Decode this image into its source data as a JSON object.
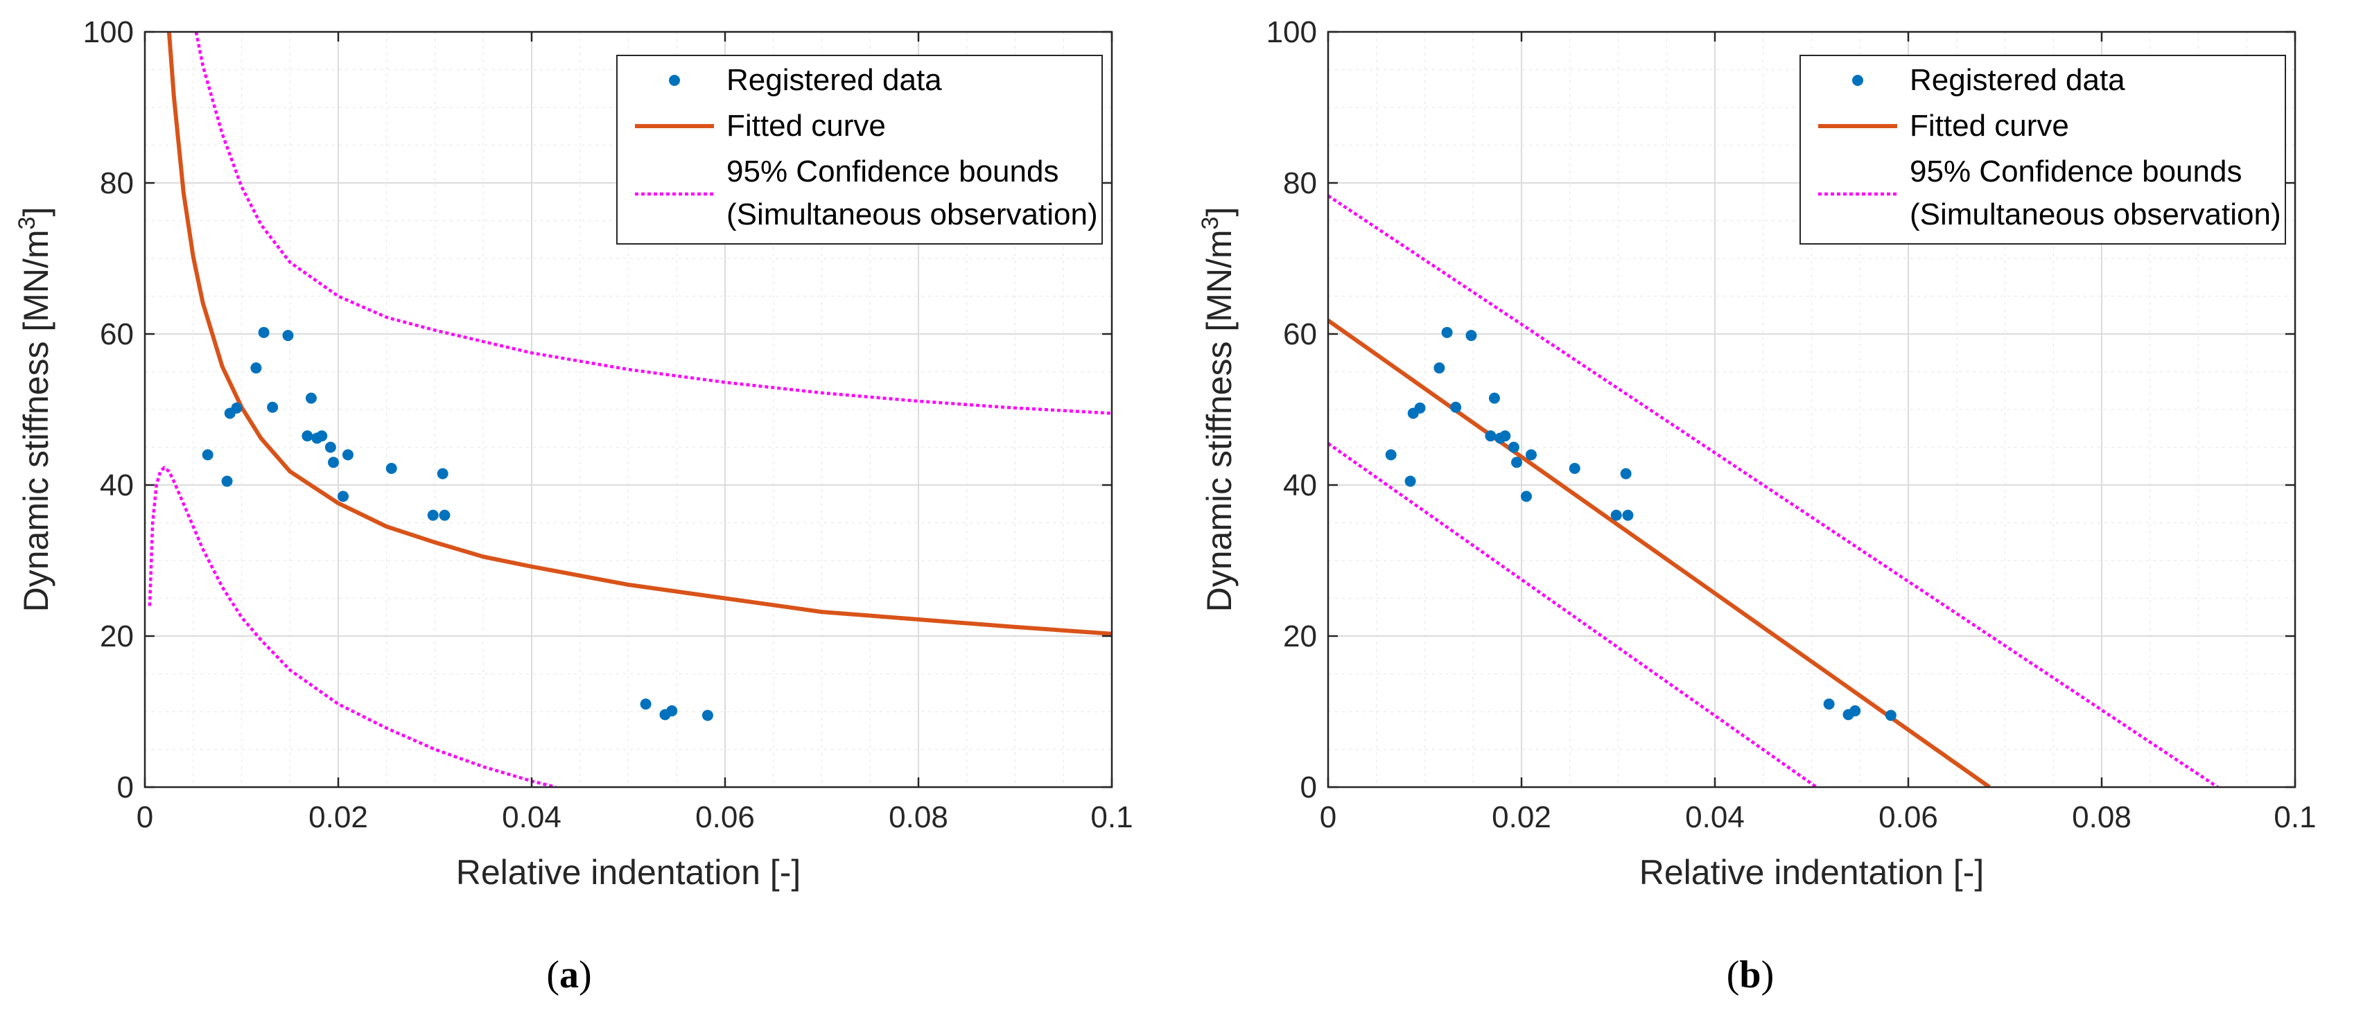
{
  "colors": {
    "data": "#0072BD",
    "fit": "#D95319",
    "bounds": "#FF00FF",
    "grid": "#e5e5e5",
    "axis": "#262626"
  },
  "chart_data": [
    {
      "panel": "(a)",
      "type": "scatter",
      "xlabel": "Relative indentation [-]",
      "ylabel": "Dynamic stiffness [MN/m",
      "ylabel_sup": "3",
      "ylabel_end": "]",
      "xlim": [
        0,
        0.1
      ],
      "ylim": [
        0,
        100
      ],
      "xticks": [
        0,
        0.02,
        0.04,
        0.06,
        0.08,
        0.1
      ],
      "xtick_labels": [
        "0",
        "0.02",
        "0.04",
        "0.06",
        "0.08",
        "0.1"
      ],
      "yticks": [
        0,
        20,
        40,
        60,
        80,
        100
      ],
      "ytick_labels": [
        "0",
        "20",
        "40",
        "60",
        "80",
        "100"
      ],
      "grid": "on",
      "legend_position": "top-right",
      "legend": [
        "Registered data",
        "Fitted curve",
        "95% Confidence bounds",
        "(Simultaneous observation)"
      ],
      "series": [
        {
          "name": "Registered data",
          "kind": "points",
          "x": [
            0.0065,
            0.0085,
            0.0088,
            0.0095,
            0.0115,
            0.0123,
            0.0132,
            0.0148,
            0.0168,
            0.0172,
            0.0178,
            0.0183,
            0.0192,
            0.0195,
            0.0205,
            0.021,
            0.0255,
            0.0298,
            0.0308,
            0.031,
            0.0518,
            0.0538,
            0.0545,
            0.0582
          ],
          "y": [
            44,
            40.5,
            49.5,
            50.2,
            55.5,
            60.2,
            50.3,
            59.8,
            46.5,
            51.5,
            46.2,
            46.5,
            45,
            43,
            38.5,
            44,
            42.2,
            36,
            41.5,
            36,
            11,
            9.6,
            10.1,
            9.5
          ]
        },
        {
          "name": "Fitted curve",
          "kind": "line",
          "x": [
            0.0025,
            0.003,
            0.004,
            0.005,
            0.006,
            0.008,
            0.01,
            0.012,
            0.015,
            0.02,
            0.025,
            0.03,
            0.035,
            0.04,
            0.05,
            0.06,
            0.07,
            0.08,
            0.09,
            0.1
          ],
          "y": [
            100,
            91.5,
            78.7,
            70.2,
            64.1,
            55.7,
            50.3,
            46.2,
            41.8,
            37.6,
            34.5,
            32.4,
            30.5,
            29.2,
            26.8,
            25,
            23.2,
            22.2,
            21.2,
            20.3
          ]
        },
        {
          "name": "95% Confidence bounds (upper)",
          "kind": "dotted",
          "x": [
            0.0053,
            0.006,
            0.008,
            0.01,
            0.012,
            0.015,
            0.02,
            0.025,
            0.03,
            0.04,
            0.05,
            0.06,
            0.07,
            0.08,
            0.09,
            0.1
          ],
          "y": [
            100,
            95.5,
            86.5,
            79.5,
            74.5,
            69.5,
            65,
            62.2,
            60.5,
            57.5,
            55.3,
            53.6,
            52.2,
            51.1,
            50.2,
            49.5
          ]
        },
        {
          "name": "95% Confidence bounds (lower)",
          "kind": "dotted",
          "x": [
            0.0005,
            0.0008,
            0.0012,
            0.0016,
            0.002,
            0.0025,
            0.003,
            0.004,
            0.005,
            0.006,
            0.008,
            0.01,
            0.012,
            0.015,
            0.02,
            0.025,
            0.03,
            0.035,
            0.04,
            0.0425
          ],
          "y": [
            24,
            35,
            40,
            41.8,
            42.3,
            41.8,
            40.5,
            37.5,
            34.5,
            31.5,
            26.5,
            22.5,
            19.5,
            15.5,
            11,
            7.8,
            5,
            2.7,
            0.8,
            0
          ]
        }
      ]
    },
    {
      "panel": "(b)",
      "type": "scatter",
      "xlabel": "Relative indentation [-]",
      "ylabel": "Dynamic stiffness [MN/m",
      "ylabel_sup": "3",
      "ylabel_end": "]",
      "xlim": [
        0,
        0.1
      ],
      "ylim": [
        0,
        100
      ],
      "xticks": [
        0,
        0.02,
        0.04,
        0.06,
        0.08,
        0.1
      ],
      "xtick_labels": [
        "0",
        "0.02",
        "0.04",
        "0.06",
        "0.08",
        "0.1"
      ],
      "yticks": [
        0,
        20,
        40,
        60,
        80,
        100
      ],
      "ytick_labels": [
        "0",
        "20",
        "40",
        "60",
        "80",
        "100"
      ],
      "grid": "on",
      "legend_position": "top-right",
      "legend": [
        "Registered data",
        "Fitted curve",
        "95% Confidence bounds",
        "(Simultaneous observation)"
      ],
      "series": [
        {
          "name": "Registered data",
          "kind": "points",
          "x": [
            0.0065,
            0.0085,
            0.0088,
            0.0095,
            0.0115,
            0.0123,
            0.0132,
            0.0148,
            0.0168,
            0.0172,
            0.0178,
            0.0183,
            0.0192,
            0.0195,
            0.0205,
            0.021,
            0.0255,
            0.0298,
            0.0308,
            0.031,
            0.0518,
            0.0538,
            0.0545,
            0.0582
          ],
          "y": [
            44,
            40.5,
            49.5,
            50.2,
            55.5,
            60.2,
            50.3,
            59.8,
            46.5,
            51.5,
            46.2,
            46.5,
            45,
            43,
            38.5,
            44,
            42.2,
            36,
            41.5,
            36,
            11,
            9.6,
            10.1,
            9.5
          ]
        },
        {
          "name": "Fitted curve",
          "kind": "line",
          "x": [
            0,
            0.0684
          ],
          "y": [
            61.8,
            0
          ]
        },
        {
          "name": "95% Confidence bounds (upper)",
          "kind": "dotted",
          "x": [
            0,
            0.092
          ],
          "y": [
            78.3,
            0
          ]
        },
        {
          "name": "95% Confidence bounds (lower)",
          "kind": "dotted",
          "x": [
            0,
            0.0505
          ],
          "y": [
            45.5,
            0
          ]
        }
      ]
    }
  ]
}
